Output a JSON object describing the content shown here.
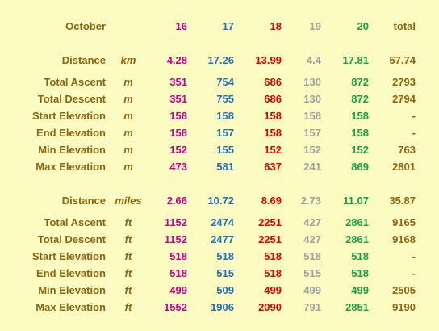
{
  "header": {
    "month": "October",
    "days": [
      16,
      17,
      18,
      19,
      20
    ],
    "total": "total"
  },
  "colors": {
    "label": "#8c6410",
    "days": [
      "#c8008c",
      "#1f6fb8",
      "#e00000",
      "#a0a0a0",
      "#18a048"
    ],
    "total": "#8c6410"
  },
  "sections": [
    {
      "rows": [
        {
          "label": "Distance",
          "unit": "km",
          "values": [
            4.28,
            17.26,
            13.99,
            4.4,
            17.81
          ],
          "total": 57.74
        },
        {
          "label": "Total Ascent",
          "unit": "m",
          "values": [
            351,
            754,
            686,
            130,
            872
          ],
          "total": 2793
        },
        {
          "label": "Total Descent",
          "unit": "m",
          "values": [
            351,
            755,
            686,
            130,
            872
          ],
          "total": 2794
        },
        {
          "label": "Start Elevation",
          "unit": "m",
          "values": [
            158,
            158,
            158,
            158,
            158
          ],
          "total": "-"
        },
        {
          "label": "End Elevation",
          "unit": "m",
          "values": [
            158,
            157,
            158,
            157,
            158
          ],
          "total": "-"
        },
        {
          "label": "Min Elevation",
          "unit": "m",
          "values": [
            152,
            155,
            152,
            152,
            152
          ],
          "total": 763
        },
        {
          "label": "Max Elevation",
          "unit": "m",
          "values": [
            473,
            581,
            637,
            241,
            869
          ],
          "total": 2801
        }
      ]
    },
    {
      "rows": [
        {
          "label": "Distance",
          "unit": "miles",
          "values": [
            2.66,
            10.72,
            8.69,
            2.73,
            11.07
          ],
          "total": 35.87
        },
        {
          "label": "Total Ascent",
          "unit": "ft",
          "values": [
            1152,
            2474,
            2251,
            427,
            2861
          ],
          "total": 9165
        },
        {
          "label": "Total Descent",
          "unit": "ft",
          "values": [
            1152,
            2477,
            2251,
            427,
            2861
          ],
          "total": 9168
        },
        {
          "label": "Start Elevation",
          "unit": "ft",
          "values": [
            518,
            518,
            518,
            518,
            518
          ],
          "total": "-"
        },
        {
          "label": "End Elevation",
          "unit": "ft",
          "values": [
            518,
            515,
            518,
            515,
            518
          ],
          "total": "-"
        },
        {
          "label": "Min Elevation",
          "unit": "ft",
          "values": [
            499,
            509,
            499,
            499,
            499
          ],
          "total": 2505
        },
        {
          "label": "Max Elevation",
          "unit": "ft",
          "values": [
            1552,
            1906,
            2090,
            791,
            2851
          ],
          "total": 9190
        }
      ]
    }
  ]
}
